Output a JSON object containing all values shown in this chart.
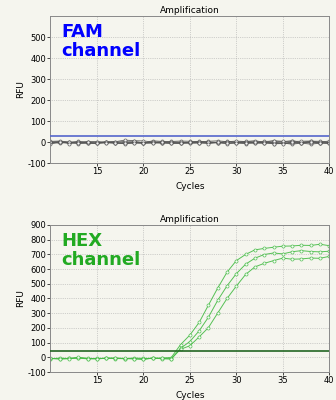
{
  "title": "Amplification",
  "xlabel": "Cycles",
  "ylabel": "RFU",
  "fam_label": "FAM\nchannel",
  "hex_label": "HEX\nchannel",
  "fam_color": "#0000FF",
  "hex_color": "#22AA22",
  "threshold_color_fam": "#5566CC",
  "threshold_color_hex": "#226622",
  "fam_ylim": [
    -100,
    600
  ],
  "hex_ylim": [
    -100,
    900
  ],
  "fam_yticks": [
    0,
    100,
    200,
    300,
    400,
    500
  ],
  "hex_yticks": [
    0,
    100,
    200,
    300,
    400,
    500,
    600,
    700,
    800,
    900
  ],
  "xlim": [
    10,
    40
  ],
  "xticks": [
    15,
    20,
    25,
    30,
    35,
    40
  ],
  "fam_threshold": 30,
  "hex_threshold": 45,
  "n_series_fam": 6,
  "n_series_hex": 3,
  "marker_color_fam": "#555555",
  "marker_color_hex": "#44BB44",
  "background_color": "#F5F5EE",
  "figsize": [
    3.36,
    4.0
  ],
  "dpi": 100
}
